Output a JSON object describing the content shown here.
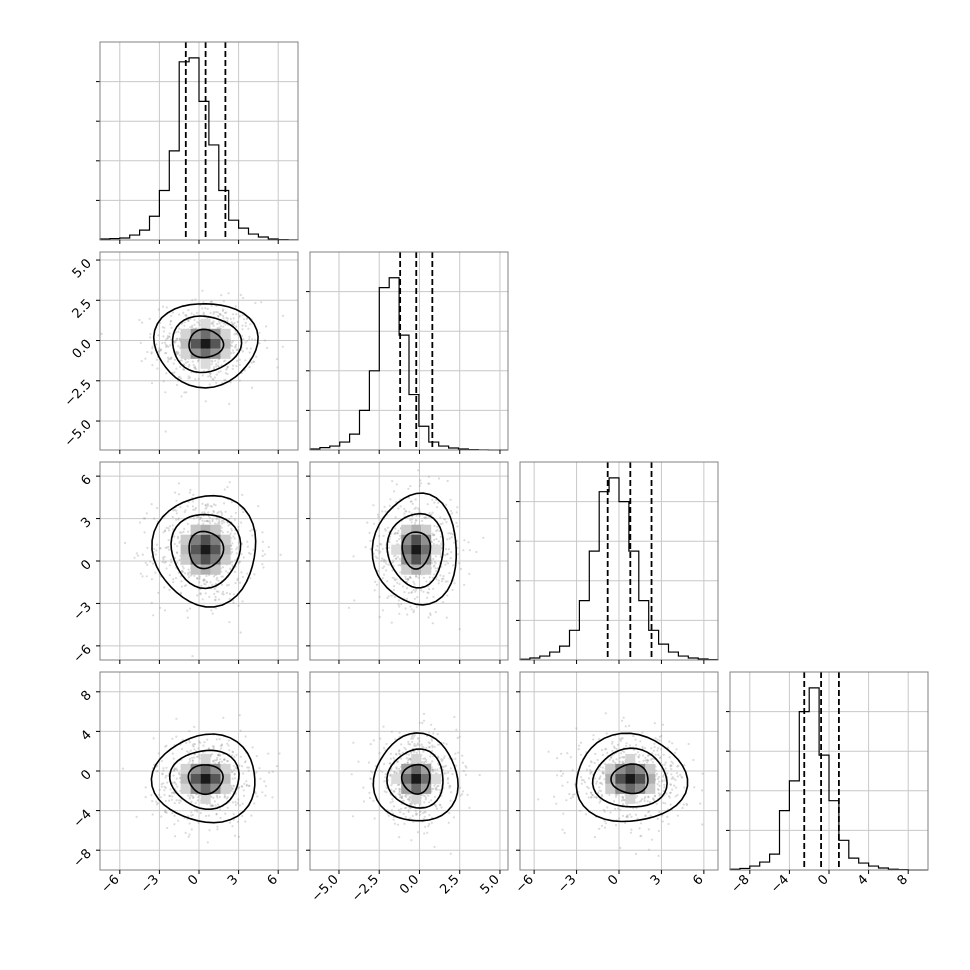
{
  "chart_data": {
    "type": "corner",
    "parameters": 4,
    "scatter_points_per_panel": 600,
    "histogram_bins": 20,
    "quantiles": [
      0.16,
      0.5,
      0.84
    ],
    "grid": true,
    "axes": [
      {
        "name": "",
        "range": [
          -7.5,
          7.5
        ],
        "ticks": [
          -6,
          -3,
          0,
          3,
          6
        ],
        "tick_labels": [
          "−6",
          "−3",
          "0",
          "3",
          "6"
        ],
        "mean": 0.5,
        "sigma": 1.5,
        "quantile_values": [
          -1.0,
          0.5,
          2.0
        ],
        "hist_ymax": 1.0,
        "hist_counts": [
          0.005,
          0.007,
          0.01,
          0.025,
          0.05,
          0.12,
          0.25,
          0.45,
          0.9,
          0.92,
          0.7,
          0.48,
          0.25,
          0.1,
          0.06,
          0.03,
          0.015,
          0.005,
          0.002,
          0.001
        ]
      },
      {
        "name": "",
        "range": [
          -6.8,
          5.5
        ],
        "ticks": [
          -5.0,
          -2.5,
          0.0,
          2.5,
          5.0
        ],
        "tick_labels": [
          "−5.0",
          "−2.5",
          "0.0",
          "2.5",
          "5.0"
        ],
        "mean": -0.2,
        "sigma": 1.0,
        "quantile_values": [
          -1.2,
          -0.2,
          0.8
        ],
        "hist_ymax": 1.0,
        "hist_counts": [
          0.005,
          0.012,
          0.02,
          0.04,
          0.08,
          0.2,
          0.4,
          0.82,
          0.87,
          0.58,
          0.28,
          0.12,
          0.04,
          0.02,
          0.01,
          0.005,
          0.002,
          0.001,
          0.0,
          0.0
        ]
      },
      {
        "name": "",
        "range": [
          -7.0,
          7.0
        ],
        "ticks": [
          -6,
          -3,
          0,
          3,
          6
        ],
        "tick_labels": [
          "−6",
          "−3",
          "0",
          "3",
          "6"
        ],
        "mean": 0.8,
        "sigma": 1.5,
        "quantile_values": [
          -0.8,
          0.8,
          2.3
        ],
        "hist_ymax": 1.0,
        "hist_counts": [
          0.004,
          0.01,
          0.02,
          0.04,
          0.07,
          0.15,
          0.3,
          0.55,
          0.85,
          0.92,
          0.8,
          0.55,
          0.3,
          0.15,
          0.08,
          0.04,
          0.02,
          0.01,
          0.005,
          0.002
        ]
      },
      {
        "name": "",
        "range": [
          -10.0,
          10.0
        ],
        "ticks": [
          -8,
          -4,
          0,
          4,
          8
        ],
        "tick_labels": [
          "−8",
          "−4",
          "0",
          "4",
          "8"
        ],
        "mean": -0.8,
        "sigma": 1.7,
        "quantile_values": [
          -2.5,
          -0.8,
          1.0
        ],
        "hist_ymax": 1.0,
        "hist_counts": [
          0.004,
          0.008,
          0.02,
          0.04,
          0.08,
          0.3,
          0.45,
          0.8,
          0.92,
          0.58,
          0.35,
          0.15,
          0.06,
          0.035,
          0.02,
          0.01,
          0.004,
          0.002,
          0.0,
          0.0
        ]
      }
    ],
    "histogram_yticks": [
      0.2,
      0.4,
      0.6,
      0.8
    ],
    "contour_levels_sigma": [
      0.6,
      1.2,
      1.8
    ],
    "colors": {
      "points": "#999999",
      "lines": "#000000",
      "grid": "#c8c8c8",
      "frame": "#808080"
    }
  }
}
